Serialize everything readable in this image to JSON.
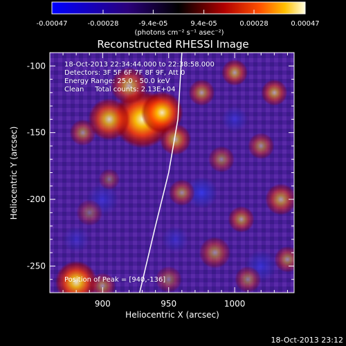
{
  "chart_data": {
    "type": "heatmap",
    "title": "Reconstructed RHESSI Image",
    "xlabel": "Heliocentric X (arcsec)",
    "ylabel": "Heliocentric Y (arcsec)",
    "xlim": [
      860,
      1045
    ],
    "ylim": [
      -270,
      -90
    ],
    "x_ticks": [
      900,
      950,
      1000
    ],
    "y_ticks": [
      -100,
      -150,
      -200,
      -250
    ],
    "colorbar": {
      "ticks": [
        "-0.00047",
        "-0.00028",
        "-9.4e-05",
        "9.4e-05",
        "0.00028",
        "0.00047"
      ],
      "range": [
        -0.00047,
        0.00047
      ],
      "unit_text": "(photons cm⁻² s⁻¹ asec⁻²)"
    },
    "annotations": [
      "18-Oct-2013 22:34:44.000 to 22:38:58.000",
      "Detectors: 3F 5F 6F 7F 8F 9F, Att 0",
      "Energy Range: 25.0 - 50.0 keV",
      "Clean     Total counts: 2.13E+04"
    ],
    "peak_label": "Position of Peak = [940,-136]",
    "peak": [
      940,
      -136
    ],
    "limb": {
      "points": [
        [
          960,
          -90
        ],
        [
          957,
          -140
        ],
        [
          950,
          -180
        ],
        [
          940,
          -220
        ],
        [
          928,
          -270
        ]
      ]
    },
    "blobs": [
      {
        "x": 930,
        "y": -140,
        "s": 22,
        "a": 0.95
      },
      {
        "x": 945,
        "y": -135,
        "s": 16,
        "a": 0.9
      },
      {
        "x": 905,
        "y": -140,
        "s": 16,
        "a": 0.75
      },
      {
        "x": 920,
        "y": -115,
        "s": 14,
        "a": 0.6
      },
      {
        "x": 955,
        "y": -155,
        "s": 12,
        "a": 0.6
      },
      {
        "x": 885,
        "y": -150,
        "s": 10,
        "a": 0.45
      },
      {
        "x": 880,
        "y": -262,
        "s": 16,
        "a": 0.85
      },
      {
        "x": 900,
        "y": -265,
        "s": 10,
        "a": 0.45
      },
      {
        "x": 975,
        "y": -120,
        "s": 10,
        "a": 0.5
      },
      {
        "x": 1000,
        "y": -105,
        "s": 10,
        "a": 0.55
      },
      {
        "x": 1030,
        "y": -120,
        "s": 10,
        "a": 0.55
      },
      {
        "x": 1020,
        "y": -160,
        "s": 10,
        "a": 0.45
      },
      {
        "x": 990,
        "y": -170,
        "s": 10,
        "a": 0.4
      },
      {
        "x": 1035,
        "y": -200,
        "s": 12,
        "a": 0.55
      },
      {
        "x": 1005,
        "y": -215,
        "s": 10,
        "a": 0.5
      },
      {
        "x": 960,
        "y": -195,
        "s": 10,
        "a": 0.45
      },
      {
        "x": 985,
        "y": -240,
        "s": 12,
        "a": 0.45
      },
      {
        "x": 1040,
        "y": -245,
        "s": 10,
        "a": 0.45
      },
      {
        "x": 1010,
        "y": -260,
        "s": 10,
        "a": 0.4
      },
      {
        "x": 950,
        "y": -260,
        "s": 10,
        "a": 0.35
      },
      {
        "x": 890,
        "y": -210,
        "s": 10,
        "a": 0.3
      },
      {
        "x": 905,
        "y": -185,
        "s": 8,
        "a": 0.3
      }
    ],
    "cold_spots": [
      {
        "x": 975,
        "y": -195,
        "s": 12,
        "a": 0.7
      },
      {
        "x": 900,
        "y": -200,
        "s": 12,
        "a": 0.5
      },
      {
        "x": 1000,
        "y": -140,
        "s": 10,
        "a": 0.5
      },
      {
        "x": 1020,
        "y": -250,
        "s": 12,
        "a": 0.55
      },
      {
        "x": 955,
        "y": -230,
        "s": 10,
        "a": 0.45
      },
      {
        "x": 880,
        "y": -230,
        "s": 10,
        "a": 0.4
      }
    ]
  },
  "footer": {
    "timestamp": "18-Oct-2013 23:12"
  }
}
